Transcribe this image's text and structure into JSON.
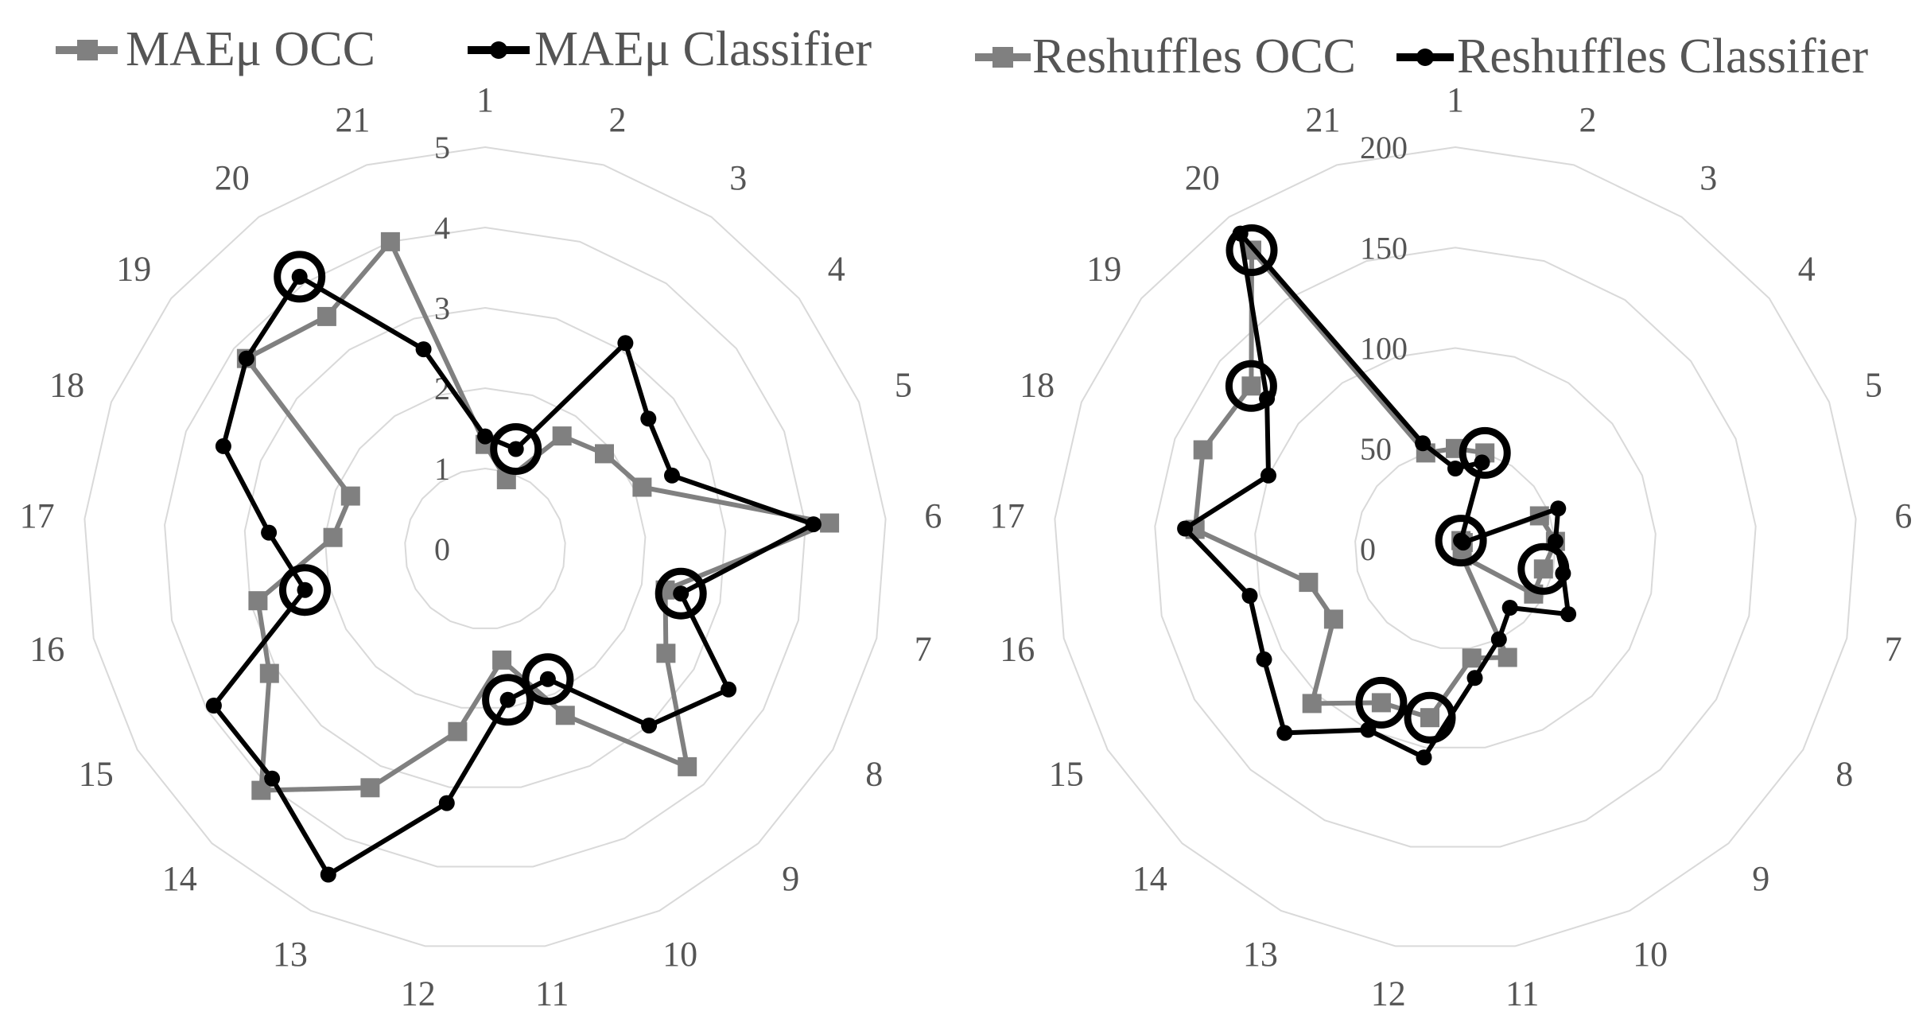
{
  "colors": {
    "grid": "#d9d9d9",
    "occ": "#808080",
    "classifier": "#000000",
    "text": "#555555"
  },
  "chart_data": [
    {
      "type": "radar",
      "title": "",
      "categories": [
        "1",
        "2",
        "3",
        "4",
        "5",
        "6",
        "7",
        "8",
        "9",
        "10",
        "11",
        "12",
        "13",
        "14",
        "15",
        "16",
        "17",
        "18",
        "19",
        "20",
        "21"
      ],
      "r_ticks": [
        "0",
        "1",
        "2",
        "3",
        "4",
        "5"
      ],
      "rlim": [
        0,
        5
      ],
      "grid": true,
      "legend_position": "top",
      "series": [
        {
          "name": "MAEμ OCC",
          "marker": "square",
          "values": [
            1.3,
            0.9,
            1.7,
            1.9,
            2.1,
            4.3,
            2.3,
            2.6,
            3.7,
            2.3,
            1.4,
            2.3,
            3.3,
            4.1,
            3.1,
            2.9,
            1.9,
            1.8,
            3.8,
            3.5,
            4.0
          ]
        },
        {
          "name": "MAEμ Classifier",
          "marker": "circle",
          "values": [
            1.4,
            1.3,
            3.1,
            2.6,
            2.5,
            4.1,
            2.5,
            3.5,
            3.0,
            1.8,
            1.9,
            3.2,
            4.5,
            3.9,
            3.9,
            2.3,
            2.7,
            3.5,
            3.8,
            4.1,
            2.6
          ],
          "highlighted": [
            1,
            6,
            9,
            10,
            15,
            19
          ]
        }
      ]
    },
    {
      "type": "radar",
      "title": "",
      "categories": [
        "1",
        "2",
        "3",
        "4",
        "5",
        "6",
        "7",
        "8",
        "9",
        "10",
        "11",
        "12",
        "13",
        "14",
        "15",
        "16",
        "17",
        "18",
        "19",
        "20",
        "21"
      ],
      "r_ticks": [
        "0",
        "50",
        "100",
        "150",
        "200"
      ],
      "rlim": [
        0,
        200
      ],
      "grid": true,
      "legend_position": "top",
      "series": [
        {
          "name": "Reshuffles OCC",
          "marker": "square",
          "values": [
            50,
            50,
            5,
            5,
            45,
            50,
            45,
            45,
            5,
            60,
            55,
            85,
            85,
            105,
            70,
            75,
            130,
            135,
            130,
            180,
            50
          ],
          "highlighted": [
            1,
            2,
            6,
            11,
            12,
            18,
            19
          ]
        },
        {
          "name": "Reshuffles Classifier",
          "marker": "circle",
          "values": [
            40,
            45,
            5,
            5,
            55,
            50,
            55,
            65,
            40,
            50,
            65,
            105,
            100,
            125,
            110,
            105,
            135,
            100,
            120,
            190,
            55
          ]
        }
      ]
    }
  ]
}
